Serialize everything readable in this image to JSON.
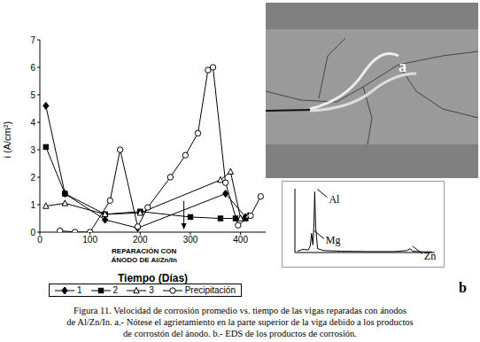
{
  "chart_data": [
    {
      "type": "line",
      "xlabel": "Tiempo (Días)",
      "ylabel": "i (A/cm²)",
      "xlim": [
        0,
        450
      ],
      "xticks": [
        0,
        100,
        200,
        300,
        400
      ],
      "ylim": [
        0,
        7
      ],
      "yticks": [
        0,
        1,
        2,
        3,
        4,
        5,
        6,
        7
      ],
      "legend": "bottom",
      "series": [
        {
          "name": "1",
          "color": "#000000",
          "marker": "diamond",
          "x": [
            12,
            50,
            130,
            195,
            370,
            410
          ],
          "values": [
            4.6,
            1.4,
            0.45,
            0.15,
            1.4,
            0.55
          ]
        },
        {
          "name": "2",
          "color": "#000000",
          "marker": "square",
          "x": [
            12,
            50,
            130,
            200,
            300,
            360,
            390,
            410
          ],
          "values": [
            3.1,
            1.4,
            0.65,
            0.75,
            0.55,
            0.5,
            0.5,
            0.5
          ]
        },
        {
          "name": "3",
          "color": "#000000",
          "marker": "triangle-open",
          "x": [
            12,
            50,
            130,
            200,
            360,
            380,
            400,
            415
          ],
          "values": [
            0.95,
            1.05,
            0.65,
            0.7,
            1.9,
            2.2,
            0.5,
            0.6
          ]
        },
        {
          "name": "Precipitación",
          "color": "#000000",
          "marker": "circle-open",
          "x": [
            40,
            70,
            100,
            140,
            160,
            195,
            215,
            260,
            290,
            315,
            335,
            345,
            370,
            395,
            420,
            440
          ],
          "values": [
            0.05,
            0,
            0,
            1.15,
            3.0,
            0.2,
            0.9,
            2.0,
            2.8,
            3.6,
            5.9,
            6.0,
            1.8,
            0.25,
            0.6,
            1.3
          ]
        }
      ],
      "annotations": [
        {
          "text": [
            "REPARACIÓN CON",
            "ÁNODO DE Al/Zn/In"
          ],
          "x": 287,
          "y": 0.1
        }
      ]
    },
    {
      "type": "line",
      "tick_labels": false,
      "xlim": [
        0,
        10.5
      ],
      "ylim": [
        0,
        100
      ],
      "series": [
        {
          "name": "EDS",
          "color": "#000000",
          "x": [
            0.2,
            0.6,
            1.0,
            1.15,
            1.25,
            1.35,
            1.42,
            1.49,
            1.56,
            1.7,
            2.2,
            3.5,
            5.5,
            7.5,
            8.4,
            8.63,
            8.85,
            9.6,
            10.3
          ],
          "values": [
            2,
            5,
            4,
            10,
            30,
            12,
            40,
            95,
            40,
            6,
            3,
            2,
            1.5,
            1.5,
            3,
            6,
            2,
            1,
            1
          ]
        }
      ],
      "annotations": [
        {
          "text": "Al",
          "x": 1.49,
          "y": 95
        },
        {
          "text": "Mg",
          "x": 1.25,
          "y": 30
        },
        {
          "text": "Zn",
          "x": 8.63,
          "y": 6
        }
      ]
    }
  ],
  "photo_label": "a",
  "eds_label": "b",
  "caption": [
    "Figura 11. Velocidad de corrosión promedio vs. tiempo de las vigas reparadas con ánodos",
    "de Al/Zn/In. a.- Nótese el agrietamiento en la parte superior de la viga debido a los productos",
    "de corrostón del ánodo. b.- EDS de los productos de corrosión."
  ]
}
